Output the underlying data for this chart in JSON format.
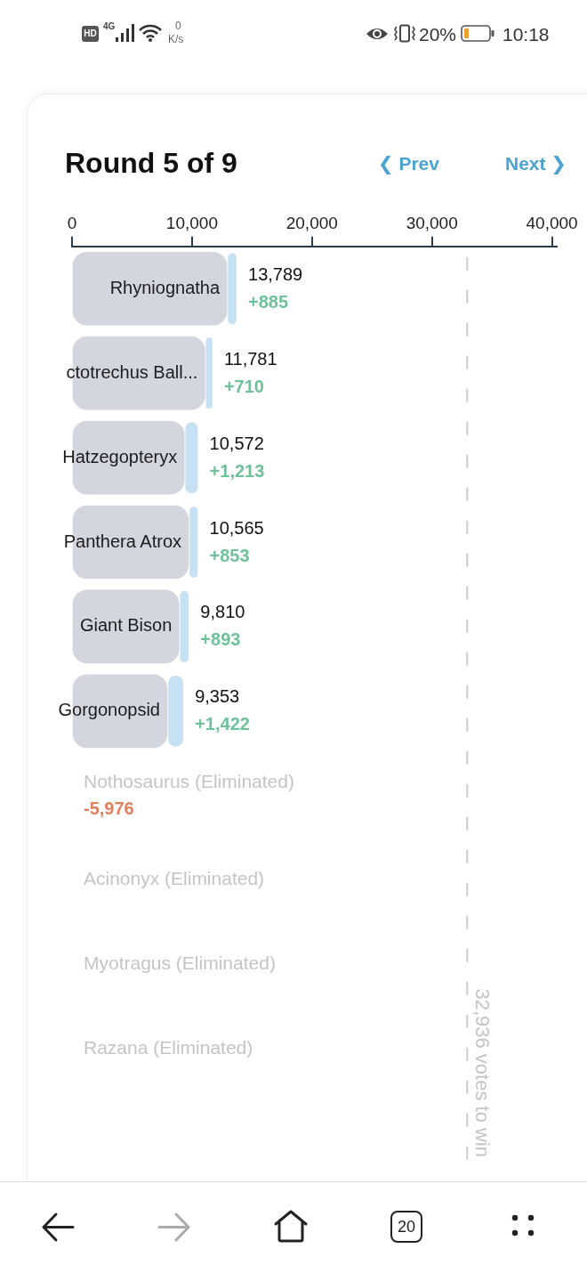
{
  "chart_data": {
    "type": "bar",
    "orientation": "horizontal",
    "stacked": true,
    "title": "Round 5 of 9",
    "categories": [
      "Rhyniognatha",
      "ctotrechus Ball...",
      "Hatzegopteryx",
      "Panthera Atrox",
      "Giant Bison",
      "Gorgonopsid",
      "Nothosaurus (Eliminated)",
      "Acinonyx (Eliminated)",
      "Myotragus (Eliminated)",
      "Razana (Eliminated)"
    ],
    "series": [
      {
        "color": "#d3d6df",
        "values": [
          12904,
          11071,
          9359,
          9712,
          8917,
          7931,
          null,
          null,
          null,
          null
        ]
      },
      {
        "color": "#c6e1f3",
        "values": [
          885,
          710,
          1213,
          853,
          893,
          1422,
          null,
          null,
          null,
          null
        ],
        "value_labels": [
          "+885",
          "+710",
          "+1,213",
          "+853",
          "+893",
          "+1,422",
          "-5,976",
          null,
          null,
          null
        ]
      }
    ],
    "totals": [
      "13,789",
      "11,781",
      "10,572",
      "10,565",
      "9,810",
      "9,353",
      null,
      null,
      null,
      null
    ],
    "xlim": [
      0,
      40400
    ],
    "xticks": [
      0,
      {
        "value": 10000,
        "label": "10,000"
      },
      {
        "value": 20000,
        "label": "20,000"
      },
      {
        "value": 30000,
        "label": "30,000"
      },
      {
        "value": 40000,
        "label": "40,000"
      }
    ],
    "ref_lines": [
      {
        "axis": "x",
        "value": 32936,
        "label": "32,936 votes to win",
        "color": "#cccccc",
        "line_style": "dashed"
      }
    ],
    "grid": false,
    "annotations": [
      "HD",
      "4G",
      "0",
      "K/s",
      "20%",
      "10:18",
      "❮ Prev",
      "Next ❯",
      "20"
    ]
  }
}
